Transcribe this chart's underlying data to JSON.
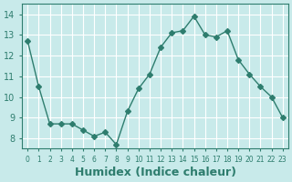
{
  "x": [
    0,
    1,
    2,
    3,
    4,
    5,
    6,
    7,
    8,
    9,
    10,
    11,
    12,
    13,
    14,
    15,
    16,
    17,
    18,
    19,
    20,
    21,
    22,
    23
  ],
  "y": [
    12.7,
    10.5,
    8.7,
    8.7,
    8.7,
    8.4,
    8.1,
    8.3,
    7.7,
    9.3,
    10.4,
    11.1,
    12.4,
    13.1,
    13.2,
    13.9,
    13.0,
    12.9,
    13.2,
    11.8,
    11.1,
    10.5,
    10.0,
    9.0
  ],
  "line_color": "#2e7d6e",
  "marker": "D",
  "marker_size": 3,
  "bg_color": "#c8eaea",
  "grid_color": "#ffffff",
  "tick_color": "#2e7d6e",
  "xlabel": "Humidex (Indice chaleur)",
  "xlabel_fontsize": 9,
  "xlim": [
    -0.5,
    23.5
  ],
  "ylim": [
    7.5,
    14.5
  ],
  "yticks": [
    8,
    9,
    10,
    11,
    12,
    13,
    14
  ],
  "xtick_labels": [
    "0",
    "1",
    "2",
    "3",
    "4",
    "5",
    "6",
    "7",
    "8",
    "9",
    "10",
    "11",
    "12",
    "13",
    "14",
    "15",
    "16",
    "17",
    "18",
    "19",
    "20",
    "21",
    "22",
    "23"
  ]
}
